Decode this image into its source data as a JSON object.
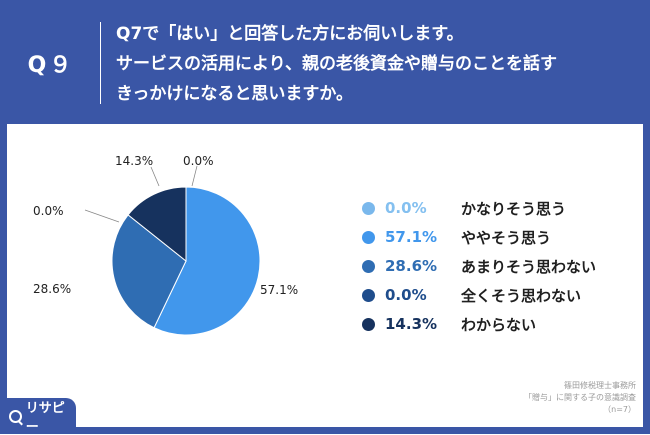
{
  "header": {
    "q_number": "Q９",
    "question_lines": [
      "Q7で「はい」と回答した方にお伺いします。",
      "サービスの活用により、親の老後資金や贈与のことを話す",
      "きっかけになると思いますか。"
    ]
  },
  "chart_data": {
    "type": "pie",
    "categories": [
      "かなりそう思う",
      "ややそう思う",
      "あまりそう思わない",
      "全くそう思わない",
      "わからない"
    ],
    "values": [
      0.0,
      57.1,
      28.6,
      0.0,
      14.3
    ],
    "value_labels": [
      "0.0%",
      "57.1%",
      "28.6%",
      "0.0%",
      "14.3%"
    ],
    "colors": [
      "#7ab8ec",
      "#4197ec",
      "#2f6db3",
      "#1f4d8c",
      "#16325e"
    ],
    "legend_text_colors": [
      "#84c0f0",
      "#4197ec",
      "#2f6db3",
      "#1f4d8c",
      "#16325e"
    ],
    "legend_placement": "right"
  },
  "source": {
    "line1": "篠田修税理士事務所",
    "line2": "「贈与」に関する子の意識調査",
    "line3": "（n=7）"
  },
  "brand": {
    "name": "リサピー",
    "color": "#3a56a6"
  }
}
